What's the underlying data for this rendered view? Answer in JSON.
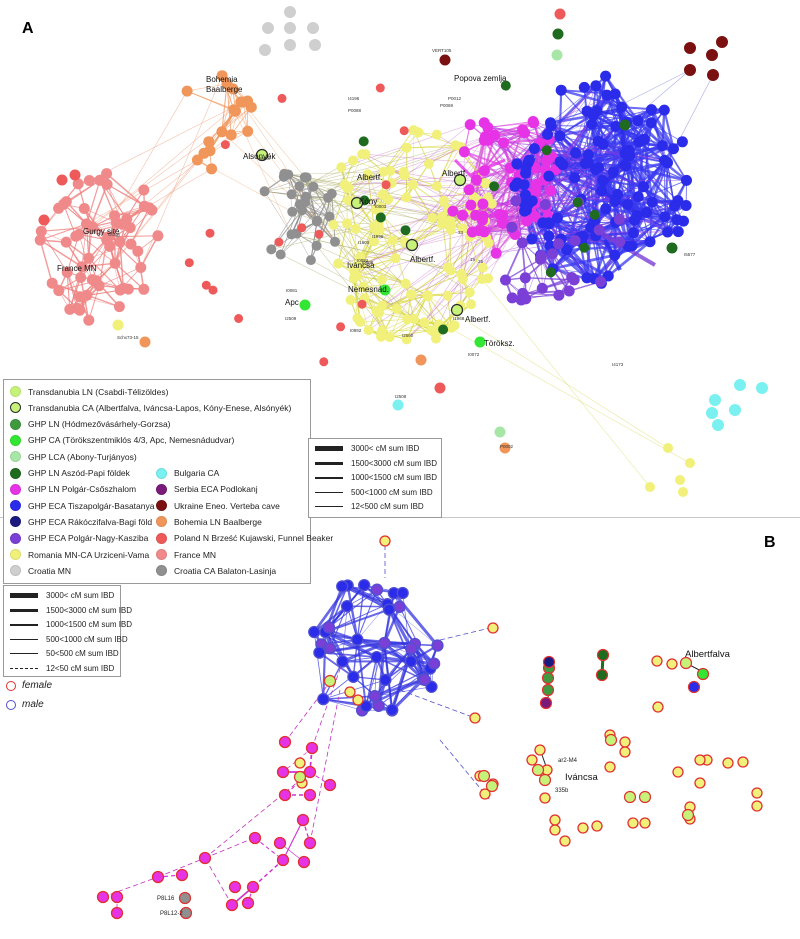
{
  "panels": {
    "a": "A",
    "b": "B"
  },
  "population_legend": {
    "items": [
      {
        "label": "Transdanubia LN (Csabdi-Télizöldes)",
        "color": "#c7f27a",
        "ring": false
      },
      {
        "label": "Transdanubia CA (Albertfalva, Iváncsa-Lapos, Kóny-Enese, Alsónyék)",
        "color": "#c7f27a",
        "ring": true
      },
      {
        "label": "GHP LN (Hódmezővásárhely-Gorzsa)",
        "color": "#3f9a3f",
        "ring": false
      },
      {
        "label": "GHP CA (Törökszentmiklós 4/3, Apc, Nemesnádudvar)",
        "color": "#33e633",
        "ring": false
      },
      {
        "label": "GHP LCA (Abony-Turjányos)",
        "color": "#a8e6a8",
        "ring": false
      },
      {
        "label": "GHP LN Aszód-Papi földek",
        "color": "#1f6b1f",
        "ring": false
      },
      {
        "label": "GHP LN Polgár-Csőszhalom",
        "color": "#e633e6",
        "ring": false
      },
      {
        "label": "GHP ECA Tiszapolgár-Basatanya",
        "color": "#2b2bea",
        "ring": false
      },
      {
        "label": "GHP ECA Rákóczifalva-Bagi föld",
        "color": "#1a1a80",
        "ring": false
      },
      {
        "label": "GHP ECA Polgár-Nagy-Kasziba",
        "color": "#7a3fd6",
        "ring": false
      },
      {
        "label": "Romania MN-CA Urziceni-Vama",
        "color": "#f0f07a",
        "ring": false
      },
      {
        "label": "Croatia MN",
        "color": "#cfcfcf",
        "ring": false
      },
      {
        "label": "Bulgaria CA",
        "color": "#7af0f0",
        "ring": false
      },
      {
        "label": "Serbia ECA Podlokanj",
        "color": "#7a1a7a",
        "ring": false
      },
      {
        "label": "Ukraine Eneo. Verteba cave",
        "color": "#7a1010",
        "ring": false
      },
      {
        "label": "Bohemia LN Baalberge",
        "color": "#f0965a",
        "ring": false
      },
      {
        "label": "Poland N Brześć Kujawski, Funnel Beaker",
        "color": "#ee5a5a",
        "ring": false
      },
      {
        "label": "France MN",
        "color": "#f08a8a",
        "ring": false
      },
      {
        "label": "Croatia CA Balaton-Lasinja",
        "color": "#909090",
        "ring": false
      }
    ]
  },
  "ibd_legend_a": {
    "items": [
      {
        "label": "3000<  cM sum IBD",
        "style": "solid",
        "weight": 5
      },
      {
        "label": "1500<3000 cM sum IBD",
        "style": "solid",
        "weight": 3.5
      },
      {
        "label": "1000<1500 cM sum IBD",
        "style": "solid",
        "weight": 2.2
      },
      {
        "label": "500<1000 cM sum IBD",
        "style": "solid",
        "weight": 1.4
      },
      {
        "label": "12<500 cM sum IBD",
        "style": "solid",
        "weight": 0.8
      }
    ]
  },
  "ibd_legend_b": {
    "items": [
      {
        "label": "3000<  cM sum IBD",
        "style": "solid",
        "weight": 5
      },
      {
        "label": "1500<3000 cM sum IBD",
        "style": "solid",
        "weight": 3.5
      },
      {
        "label": "1000<1500 cM sum IBD",
        "style": "solid",
        "weight": 2.2
      },
      {
        "label": "500<1000 cM sum IBD",
        "style": "solid",
        "weight": 1.4
      },
      {
        "label": "50<500 cM sum IBD",
        "style": "solid",
        "weight": 0.8
      },
      {
        "label": "12<50 cM sum IBD",
        "style": "dashed",
        "weight": 0.8
      }
    ]
  },
  "sex_legend": {
    "female": {
      "label": "female",
      "color": "#e03030"
    },
    "male": {
      "label": "male",
      "color": "#5050d0"
    }
  },
  "site_labels_a": [
    "Bohemia\nBaalberge",
    "Gurgy  site",
    "France MN",
    "Alsónyék",
    "Popova zemlja",
    "Albertf.",
    "Kóny",
    "Albertf.",
    "Iváncsa",
    "Albertf.",
    "Nemesnád.",
    "Apc",
    "Albertf.",
    "Töröksz."
  ],
  "site_labels_b": [
    "Albertfalva",
    "Iváncsa"
  ],
  "sample_labels_a": [
    "VERT105",
    "P0069",
    "I4196",
    "P0088",
    "P0012",
    "I0067",
    "I2508",
    "I2509",
    "I4173",
    "I5577",
    "I0992",
    "P0002",
    "Gurgy",
    "Schx73-15",
    "I0006",
    "I0003",
    "I1600",
    "I0072",
    "I0081",
    "I1996",
    "I0082",
    "I1968",
    "I2560",
    "33",
    "25",
    "19"
  ],
  "sample_labels_b": [
    "ar2-M4",
    "335b",
    "P8L16",
    "P8L12-2"
  ]
}
